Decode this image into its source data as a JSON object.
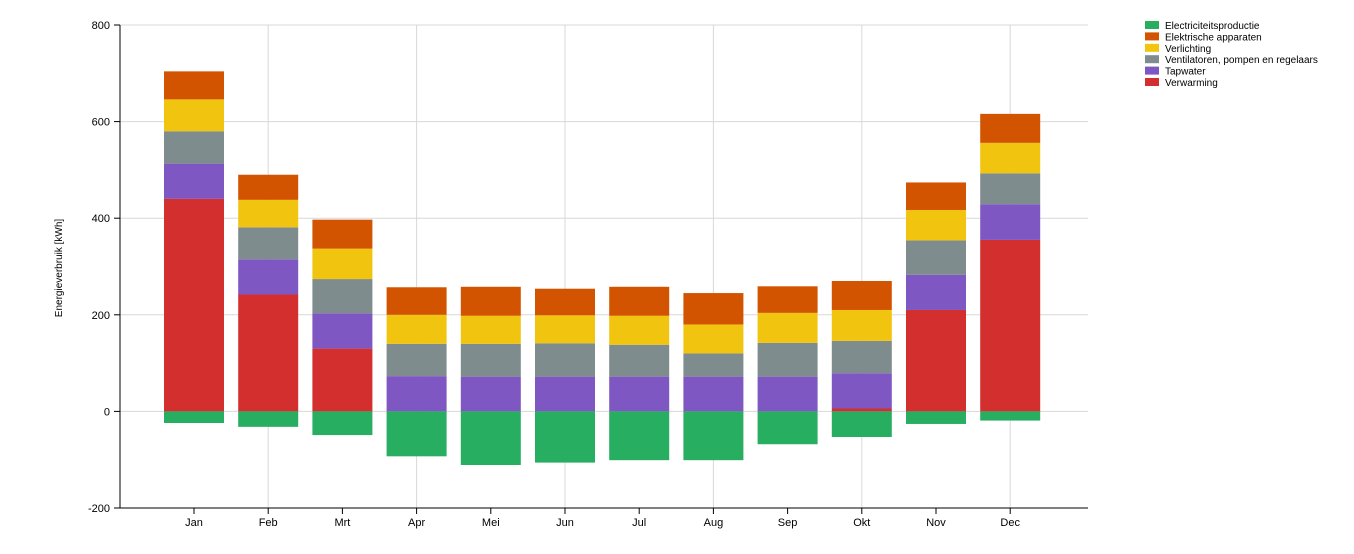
{
  "chart_data": {
    "type": "bar",
    "stacked": true,
    "ylabel": "Energieverbruik [kWh]",
    "ylim": [
      -200,
      800
    ],
    "yticks": [
      -200,
      0,
      200,
      400,
      600,
      800
    ],
    "grid": true,
    "legend_position": "top-right",
    "categories": [
      "Jan",
      "Feb",
      "Mrt",
      "Apr",
      "Mei",
      "Jun",
      "Jul",
      "Aug",
      "Sep",
      "Okt",
      "Nov",
      "Dec"
    ],
    "series": [
      {
        "name": "Electriciteitsproductie",
        "color": "#27ae60",
        "values": [
          -24,
          -32,
          -49,
          -93,
          -111,
          -106,
          -101,
          -101,
          -68,
          -53,
          -26,
          -19
        ]
      },
      {
        "name": "Elektrische apparaten",
        "color": "#d35400",
        "values": [
          58,
          52,
          60,
          57,
          60,
          55,
          60,
          65,
          55,
          60,
          57,
          60
        ]
      },
      {
        "name": "Verlichting",
        "color": "#f1c40f",
        "values": [
          66,
          57,
          63,
          60,
          58,
          58,
          60,
          60,
          62,
          64,
          63,
          63
        ]
      },
      {
        "name": "Ventilatoren, pompen en regelaars",
        "color": "#7f8c8d",
        "values": [
          67,
          66,
          71,
          67,
          68,
          69,
          66,
          48,
          70,
          67,
          71,
          64
        ]
      },
      {
        "name": "Tapwater",
        "color": "#7e57c2",
        "values": [
          73,
          73,
          73,
          73,
          72,
          72,
          72,
          72,
          72,
          73,
          73,
          74
        ]
      },
      {
        "name": "Verwarming",
        "color": "#d32f2f",
        "values": [
          440,
          242,
          130,
          0,
          0,
          0,
          0,
          0,
          0,
          6,
          210,
          355
        ]
      }
    ]
  }
}
